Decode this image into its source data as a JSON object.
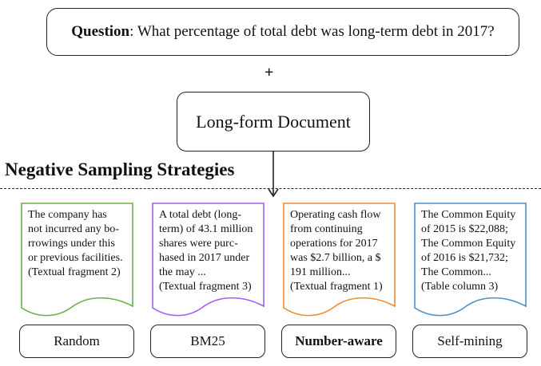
{
  "question": {
    "prefix": "Question",
    "text": ": What percentage of total debt was long-term debt in 2017?"
  },
  "plus_symbol": "+",
  "document": {
    "label": "Long-form Document"
  },
  "strategies_title": "Negative Sampling Strategies",
  "fragments": [
    {
      "text": "The company has\nnot incurred any bo-\nrrowings under this\nor previous facilities.\n(Textual fragment 2)",
      "color": "#6ab04c",
      "label": "Random",
      "label_bold": false
    },
    {
      "text": "A total debt (long-\nterm) of 43.1 million\nshares were purc-\nhased in 2017 under\nthe may ...\n(Textual fragment 3)",
      "color": "#a35cf0",
      "label": "BM25",
      "label_bold": false
    },
    {
      "text": "Operating cash flow\nfrom continuing\noperations for 2017\nwas $2.7 billion, a $\n191 million...\n(Textual fragment 1)",
      "color": "#f08a30",
      "label": "Number-aware",
      "label_bold": true
    },
    {
      "text": "The Common  Equity\nof 2015 is $22,088;\nThe Common  Equity\nof 2016 is $21,732;\nThe Common...\n(Table column 3)",
      "color": "#4a8fc8",
      "label": "Self-mining",
      "label_bold": false
    }
  ]
}
